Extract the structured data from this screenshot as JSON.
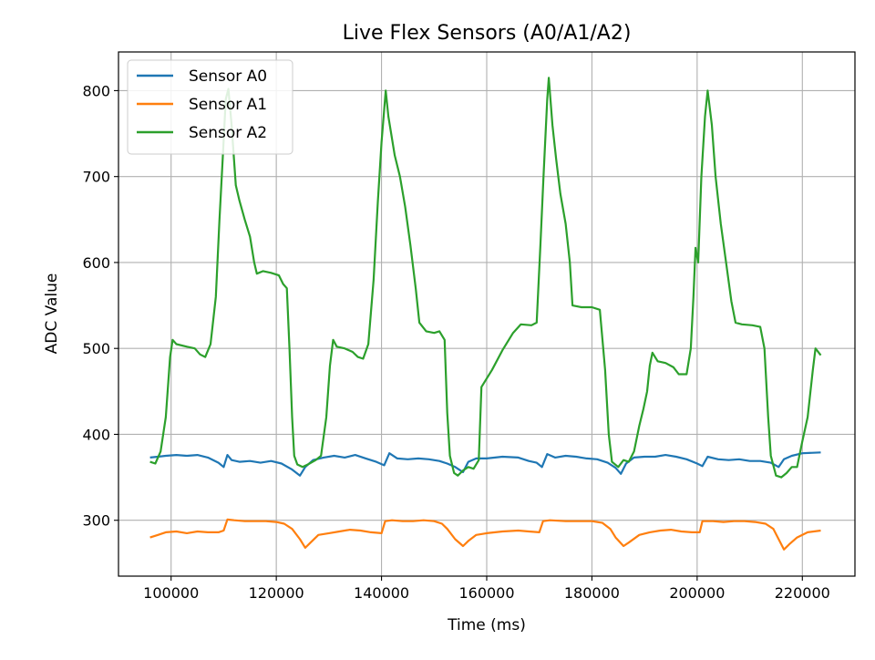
{
  "chart_data": {
    "type": "line",
    "title": "Live Flex Sensors (A0/A1/A2)",
    "xlabel": "Time (ms)",
    "ylabel": "ADC Value",
    "xlim": [
      90000,
      230000
    ],
    "ylim": [
      235,
      845
    ],
    "xticks": [
      100000,
      120000,
      140000,
      160000,
      180000,
      200000,
      220000
    ],
    "yticks": [
      300,
      400,
      500,
      600,
      700,
      800
    ],
    "grid": true,
    "legend_position": "top-left",
    "series": [
      {
        "name": "Sensor A0",
        "color": "#1f77b4",
        "points": [
          [
            96000,
            373
          ],
          [
            97500,
            374
          ],
          [
            99000,
            375
          ],
          [
            101000,
            376
          ],
          [
            103000,
            375
          ],
          [
            105000,
            376
          ],
          [
            107000,
            373
          ],
          [
            109000,
            367
          ],
          [
            110000,
            362
          ],
          [
            110700,
            376
          ],
          [
            111500,
            370
          ],
          [
            113000,
            368
          ],
          [
            115000,
            369
          ],
          [
            117000,
            367
          ],
          [
            119000,
            369
          ],
          [
            121000,
            366
          ],
          [
            123000,
            359
          ],
          [
            124500,
            352
          ],
          [
            125500,
            362
          ],
          [
            127000,
            370
          ],
          [
            129000,
            373
          ],
          [
            131000,
            375
          ],
          [
            133000,
            373
          ],
          [
            135000,
            376
          ],
          [
            137000,
            372
          ],
          [
            139000,
            368
          ],
          [
            140500,
            364
          ],
          [
            141500,
            378
          ],
          [
            143000,
            372
          ],
          [
            145000,
            371
          ],
          [
            147000,
            372
          ],
          [
            149000,
            371
          ],
          [
            151000,
            369
          ],
          [
            152500,
            366
          ],
          [
            154000,
            362
          ],
          [
            155500,
            356
          ],
          [
            156500,
            368
          ],
          [
            158000,
            372
          ],
          [
            160000,
            372
          ],
          [
            163000,
            374
          ],
          [
            166000,
            373
          ],
          [
            168000,
            369
          ],
          [
            169500,
            367
          ],
          [
            170500,
            362
          ],
          [
            171500,
            377
          ],
          [
            173000,
            373
          ],
          [
            175000,
            375
          ],
          [
            177000,
            374
          ],
          [
            179000,
            372
          ],
          [
            181000,
            371
          ],
          [
            183000,
            367
          ],
          [
            184500,
            361
          ],
          [
            185500,
            354
          ],
          [
            186500,
            366
          ],
          [
            188000,
            373
          ],
          [
            190000,
            374
          ],
          [
            192000,
            374
          ],
          [
            194000,
            376
          ],
          [
            196000,
            374
          ],
          [
            198000,
            371
          ],
          [
            200000,
            366
          ],
          [
            201000,
            363
          ],
          [
            202000,
            374
          ],
          [
            204000,
            371
          ],
          [
            206000,
            370
          ],
          [
            208000,
            371
          ],
          [
            210000,
            369
          ],
          [
            212000,
            369
          ],
          [
            214000,
            367
          ],
          [
            215500,
            362
          ],
          [
            216500,
            371
          ],
          [
            218000,
            375
          ],
          [
            220000,
            378
          ],
          [
            223500,
            379
          ]
        ]
      },
      {
        "name": "Sensor A1",
        "color": "#ff7f0e",
        "points": [
          [
            96000,
            280
          ],
          [
            97500,
            283
          ],
          [
            99000,
            286
          ],
          [
            101000,
            287
          ],
          [
            103000,
            285
          ],
          [
            105000,
            287
          ],
          [
            107000,
            286
          ],
          [
            109000,
            286
          ],
          [
            110000,
            288
          ],
          [
            110700,
            301
          ],
          [
            112000,
            300
          ],
          [
            114000,
            299
          ],
          [
            116000,
            299
          ],
          [
            118000,
            299
          ],
          [
            120000,
            298
          ],
          [
            121500,
            296
          ],
          [
            123000,
            290
          ],
          [
            124500,
            278
          ],
          [
            125500,
            268
          ],
          [
            126500,
            274
          ],
          [
            128000,
            283
          ],
          [
            130000,
            285
          ],
          [
            132000,
            287
          ],
          [
            134000,
            289
          ],
          [
            136000,
            288
          ],
          [
            138000,
            286
          ],
          [
            140000,
            285
          ],
          [
            140700,
            299
          ],
          [
            142000,
            300
          ],
          [
            144000,
            299
          ],
          [
            146000,
            299
          ],
          [
            148000,
            300
          ],
          [
            150000,
            299
          ],
          [
            151500,
            296
          ],
          [
            152500,
            290
          ],
          [
            154000,
            278
          ],
          [
            155500,
            270
          ],
          [
            156500,
            276
          ],
          [
            158000,
            283
          ],
          [
            160000,
            285
          ],
          [
            163000,
            287
          ],
          [
            166000,
            288
          ],
          [
            168000,
            287
          ],
          [
            170000,
            286
          ],
          [
            170700,
            299
          ],
          [
            172000,
            300
          ],
          [
            175000,
            299
          ],
          [
            178000,
            299
          ],
          [
            180000,
            299
          ],
          [
            182000,
            297
          ],
          [
            183500,
            290
          ],
          [
            184500,
            280
          ],
          [
            186000,
            270
          ],
          [
            187000,
            274
          ],
          [
            189000,
            283
          ],
          [
            191000,
            286
          ],
          [
            193000,
            288
          ],
          [
            195000,
            289
          ],
          [
            197000,
            287
          ],
          [
            199000,
            286
          ],
          [
            200500,
            286
          ],
          [
            201000,
            299
          ],
          [
            203000,
            299
          ],
          [
            205000,
            298
          ],
          [
            207000,
            299
          ],
          [
            209000,
            299
          ],
          [
            211000,
            298
          ],
          [
            213000,
            296
          ],
          [
            214500,
            290
          ],
          [
            215500,
            278
          ],
          [
            216500,
            266
          ],
          [
            217500,
            272
          ],
          [
            219000,
            280
          ],
          [
            221000,
            286
          ],
          [
            223500,
            288
          ]
        ]
      },
      {
        "name": "Sensor A2",
        "color": "#2ca02c",
        "points": [
          [
            96000,
            368
          ],
          [
            97000,
            366
          ],
          [
            98000,
            380
          ],
          [
            99000,
            420
          ],
          [
            99800,
            490
          ],
          [
            100300,
            510
          ],
          [
            101000,
            505
          ],
          [
            103000,
            502
          ],
          [
            104500,
            500
          ],
          [
            105500,
            493
          ],
          [
            106500,
            490
          ],
          [
            107500,
            505
          ],
          [
            108500,
            560
          ],
          [
            109200,
            650
          ],
          [
            109800,
            720
          ],
          [
            110400,
            790
          ],
          [
            110900,
            802
          ],
          [
            111500,
            760
          ],
          [
            112300,
            690
          ],
          [
            113000,
            672
          ],
          [
            114000,
            650
          ],
          [
            115000,
            630
          ],
          [
            115800,
            600
          ],
          [
            116300,
            587
          ],
          [
            117500,
            590
          ],
          [
            119000,
            588
          ],
          [
            120500,
            585
          ],
          [
            121300,
            575
          ],
          [
            122000,
            570
          ],
          [
            122500,
            500
          ],
          [
            123000,
            420
          ],
          [
            123400,
            375
          ],
          [
            124000,
            365
          ],
          [
            125000,
            362
          ],
          [
            126000,
            365
          ],
          [
            127500,
            370
          ],
          [
            128500,
            375
          ],
          [
            129500,
            420
          ],
          [
            130200,
            480
          ],
          [
            130800,
            510
          ],
          [
            131500,
            502
          ],
          [
            133000,
            500
          ],
          [
            134500,
            496
          ],
          [
            135500,
            490
          ],
          [
            136500,
            488
          ],
          [
            137500,
            505
          ],
          [
            138500,
            580
          ],
          [
            139300,
            670
          ],
          [
            140000,
            740
          ],
          [
            140800,
            800
          ],
          [
            141300,
            770
          ],
          [
            142500,
            725
          ],
          [
            143500,
            700
          ],
          [
            144500,
            665
          ],
          [
            145500,
            620
          ],
          [
            146500,
            570
          ],
          [
            147200,
            530
          ],
          [
            148500,
            520
          ],
          [
            150000,
            518
          ],
          [
            151000,
            520
          ],
          [
            152000,
            510
          ],
          [
            152500,
            425
          ],
          [
            153000,
            375
          ],
          [
            153800,
            355
          ],
          [
            154500,
            352
          ],
          [
            155500,
            358
          ],
          [
            156500,
            362
          ],
          [
            157500,
            360
          ],
          [
            158500,
            370
          ],
          [
            159000,
            455
          ],
          [
            161000,
            475
          ],
          [
            163000,
            498
          ],
          [
            165000,
            518
          ],
          [
            166500,
            528
          ],
          [
            168500,
            527
          ],
          [
            169500,
            530
          ],
          [
            170200,
            620
          ],
          [
            170800,
            700
          ],
          [
            171500,
            790
          ],
          [
            171800,
            815
          ],
          [
            172500,
            760
          ],
          [
            173200,
            720
          ],
          [
            174000,
            680
          ],
          [
            175000,
            645
          ],
          [
            175800,
            600
          ],
          [
            176300,
            550
          ],
          [
            178000,
            548
          ],
          [
            180000,
            548
          ],
          [
            181500,
            545
          ],
          [
            182500,
            475
          ],
          [
            183200,
            400
          ],
          [
            183800,
            368
          ],
          [
            185000,
            362
          ],
          [
            186000,
            370
          ],
          [
            187000,
            368
          ],
          [
            188000,
            380
          ],
          [
            189000,
            410
          ],
          [
            189800,
            430
          ],
          [
            190500,
            450
          ],
          [
            191000,
            480
          ],
          [
            191500,
            495
          ],
          [
            192500,
            485
          ],
          [
            194000,
            483
          ],
          [
            195500,
            478
          ],
          [
            196500,
            470
          ],
          [
            198000,
            470
          ],
          [
            198800,
            500
          ],
          [
            199300,
            560
          ],
          [
            199700,
            617
          ],
          [
            200200,
            600
          ],
          [
            200800,
            700
          ],
          [
            201500,
            770
          ],
          [
            202000,
            800
          ],
          [
            202800,
            760
          ],
          [
            203500,
            700
          ],
          [
            204500,
            645
          ],
          [
            205500,
            600
          ],
          [
            206500,
            555
          ],
          [
            207300,
            530
          ],
          [
            208500,
            528
          ],
          [
            210500,
            527
          ],
          [
            212000,
            525
          ],
          [
            212800,
            500
          ],
          [
            213500,
            420
          ],
          [
            214000,
            375
          ],
          [
            215000,
            352
          ],
          [
            216000,
            350
          ],
          [
            217000,
            355
          ],
          [
            218000,
            362
          ],
          [
            219000,
            362
          ],
          [
            220000,
            392
          ],
          [
            221000,
            420
          ],
          [
            222000,
            475
          ],
          [
            222500,
            500
          ],
          [
            223500,
            492
          ]
        ]
      }
    ]
  }
}
